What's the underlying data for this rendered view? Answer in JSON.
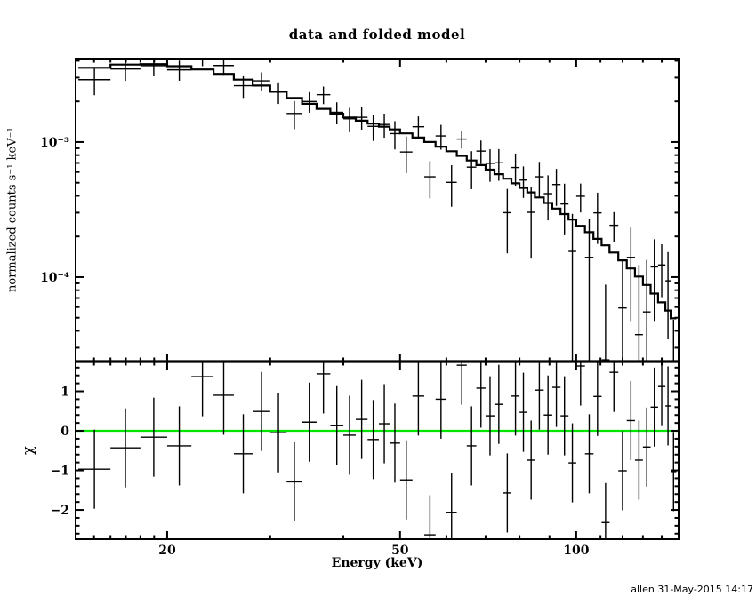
{
  "header": {
    "window_title": "data and folded model"
  },
  "footer": {
    "credit": "allen 31-May-2015 14:17"
  },
  "colors": {
    "foreground": "#000000",
    "background": "#ffffff",
    "zero_line": "#00e400"
  },
  "chart_data": {
    "type": "scatter",
    "title": "data and folded model",
    "xlabel": "Energy (keV)",
    "xscale": "log",
    "xlim": [
      13.95,
      149.6
    ],
    "x_major_ticks": [
      20,
      50,
      100
    ],
    "x_tick_labels": [
      "20",
      "50",
      "100"
    ],
    "x_minor_ticks": [
      15,
      16,
      17,
      18,
      19,
      30,
      40,
      60,
      70,
      80,
      90,
      110,
      120,
      130,
      140
    ],
    "legend": "none",
    "grid": false,
    "top_panel": {
      "ylabel": "normalized counts s⁻¹ keV⁻¹",
      "yscale": "log",
      "ylim": [
        2.37e-05,
        0.00415
      ],
      "y_major_ticks": [
        0.001,
        0.0001
      ],
      "y_tick_labels": [
        "10⁻³",
        "10⁻⁴"
      ],
      "series_names": [
        "data",
        "folded model"
      ]
    },
    "bottom_panel": {
      "ylabel": "χ",
      "yscale": "linear",
      "ylim": [
        -2.74,
        1.753
      ],
      "y_major_ticks": [
        1,
        0,
        -1,
        -2
      ],
      "y_tick_labels": [
        "1",
        "0",
        "−1",
        "−2"
      ],
      "minor_tick_step": 0.2,
      "zero_line_value": 0,
      "residual_error_bar_sigma": 1
    },
    "bin_edges_keV": [
      14.1,
      16,
      18,
      20,
      22,
      24,
      26,
      28,
      30,
      32,
      34,
      36,
      38,
      40,
      42,
      44,
      46,
      48,
      50,
      52.5,
      55,
      57.5,
      60,
      62.5,
      65,
      67.5,
      70,
      72.5,
      75,
      77.5,
      80,
      82.5,
      85,
      88,
      91,
      94,
      97,
      100,
      103.5,
      107,
      110.5,
      114,
      118,
      122,
      126,
      130,
      134,
      138,
      142,
      145,
      148.3
    ],
    "model_rate": [
      0.00355,
      0.00375,
      0.00378,
      0.00365,
      0.00345,
      0.0032,
      0.0029,
      0.00262,
      0.00236,
      0.00212,
      0.00192,
      0.00176,
      0.00162,
      0.00152,
      0.00144,
      0.00137,
      0.0013,
      0.00124,
      0.00116,
      0.00108,
      0.001,
      0.000925,
      0.000855,
      0.00079,
      0.00073,
      0.000675,
      0.000625,
      0.000578,
      0.000535,
      0.000495,
      0.000458,
      0.000424,
      0.000389,
      0.000354,
      0.000322,
      0.000293,
      0.000267,
      0.00024,
      0.000215,
      0.000192,
      0.000172,
      0.000152,
      0.000133,
      0.000116,
      0.000101,
      8.75e-05,
      7.55e-05,
      6.5e-05,
      5.65e-05,
      4.95e-05
    ],
    "data_rate": [
      0.002896,
      0.003476,
      0.003683,
      0.003428,
      0.004206,
      0.00369,
      0.002614,
      0.002838,
      0.002339,
      0.001628,
      0.001996,
      0.002242,
      0.00166,
      0.001487,
      0.001524,
      0.001307,
      0.001349,
      0.001155,
      0.000844,
      0.001299,
      0.000553,
      0.00111,
      0.000503,
      0.001052,
      0.000652,
      0.000857,
      0.000696,
      0.000702,
      0.0003,
      0.000648,
      0.000523,
      0.000302,
      0.000553,
      0.000415,
      0.000485,
      0.000348,
      0.000155,
      0.000397,
      0.00014,
      0.000299,
      2.44e-05,
      0.000242,
      5.91e-05,
      0.00014,
      3.75e-05,
      5.52e-05,
      0.000119,
      0.000123,
      9.39e-05,
      8.7e-06
    ],
    "data_err": [
      0.000675,
      0.000638,
      0.000605,
      0.000584,
      0.000552,
      0.000544,
      0.000493,
      0.000445,
      0.000425,
      0.000382,
      0.000346,
      0.000334,
      0.000308,
      0.000304,
      0.000288,
      0.000288,
      0.000273,
      0.000273,
      0.000255,
      0.000248,
      0.00017,
      0.000231,
      0.000171,
      0.000158,
      0.000204,
      0.000169,
      0.000188,
      0.000185,
      0.00015,
      0.000173,
      0.000137,
      0.000165,
      0.00016,
      0.000152,
      0.000148,
      0.000144,
      0.000139,
      9.6e-05,
      0.000129,
      0.000123,
      6.36e-05,
      6.08e-05,
      7.32e-05,
      9.28e-05,
      8.59e-05,
      7.88e-05,
      7.17e-05,
      5.2e-05,
      5.93e-05,
      3.96e-05
    ],
    "chi": [
      -0.97,
      -0.43,
      -0.16,
      -0.38,
      1.37,
      0.9,
      -0.58,
      0.49,
      -0.05,
      -1.29,
      0.22,
      1.44,
      0.13,
      -0.11,
      0.29,
      -0.22,
      0.18,
      -0.31,
      -1.24,
      0.88,
      -2.63,
      0.8,
      -2.06,
      1.66,
      -0.38,
      1.08,
      0.38,
      0.67,
      -1.57,
      0.88,
      0.47,
      -0.74,
      1.03,
      0.4,
      1.1,
      0.38,
      -0.81,
      1.64,
      -0.58,
      0.87,
      -2.32,
      1.48,
      -1.01,
      0.26,
      -0.74,
      -0.41,
      0.6,
      1.12,
      0.63,
      -1.03
    ]
  }
}
